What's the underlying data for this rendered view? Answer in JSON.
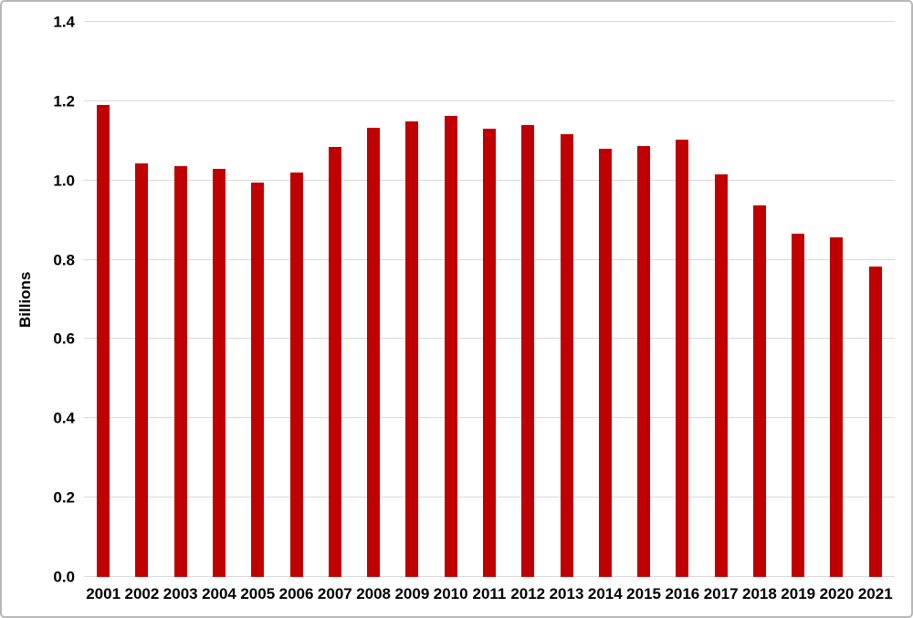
{
  "chart_data": {
    "type": "bar",
    "title": "",
    "categories": [
      "2001",
      "2002",
      "2003",
      "2004",
      "2005",
      "2006",
      "2007",
      "2008",
      "2009",
      "2010",
      "2011",
      "2012",
      "2013",
      "2014",
      "2015",
      "2016",
      "2017",
      "2018",
      "2019",
      "2020",
      "2021"
    ],
    "values": [
      1.19,
      1.042,
      1.036,
      1.03,
      0.995,
      1.021,
      1.084,
      1.132,
      1.15,
      1.162,
      1.131,
      1.139,
      1.117,
      1.079,
      1.088,
      1.102,
      1.015,
      0.937,
      0.865,
      0.856,
      0.782
    ],
    "xlabel": "",
    "ylabel": "Billions",
    "ylim": [
      0,
      1.4
    ],
    "ytick_step": 0.2,
    "ytick_labels": [
      "0.0",
      "0.2",
      "0.4",
      "0.6",
      "0.8",
      "1.0",
      "1.2",
      "1.4"
    ],
    "grid": true,
    "legend": false,
    "colors": {
      "bar": "#c00000",
      "gridline": "#d9d9d9",
      "axis_text": "#000000",
      "background": "#ffffff",
      "border": "#b7b7b7"
    }
  }
}
